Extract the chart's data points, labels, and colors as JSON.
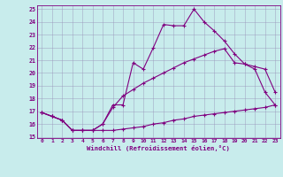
{
  "xlabel": "Windchill (Refroidissement éolien,°C)",
  "bg_color": "#c8ecec",
  "line_color": "#800080",
  "grid_color": "#9999bb",
  "xlim": [
    -0.5,
    23.5
  ],
  "ylim": [
    14.9,
    25.3
  ],
  "xticks": [
    0,
    1,
    2,
    3,
    4,
    5,
    6,
    7,
    8,
    9,
    10,
    11,
    12,
    13,
    14,
    15,
    16,
    17,
    18,
    19,
    20,
    21,
    22,
    23
  ],
  "yticks": [
    15,
    16,
    17,
    18,
    19,
    20,
    21,
    22,
    23,
    24,
    25
  ],
  "line1_x": [
    0,
    1,
    2,
    3,
    4,
    5,
    6,
    7,
    8,
    9,
    10,
    11,
    12,
    13,
    14,
    15,
    16,
    17,
    18,
    19,
    20,
    21,
    22,
    23
  ],
  "line1_y": [
    16.9,
    16.6,
    16.3,
    15.5,
    15.5,
    15.5,
    16.0,
    17.5,
    17.5,
    20.8,
    20.3,
    22.0,
    23.8,
    23.7,
    23.7,
    25.0,
    24.0,
    23.3,
    22.5,
    21.5,
    20.7,
    20.3,
    18.5,
    17.5
  ],
  "line2_x": [
    0,
    1,
    2,
    3,
    4,
    5,
    6,
    7,
    8,
    9,
    10,
    11,
    12,
    13,
    14,
    15,
    16,
    17,
    18,
    19,
    20,
    21,
    22,
    23
  ],
  "line2_y": [
    16.9,
    16.6,
    16.3,
    15.5,
    15.5,
    15.5,
    16.0,
    17.3,
    18.2,
    18.7,
    19.2,
    19.6,
    20.0,
    20.4,
    20.8,
    21.1,
    21.4,
    21.7,
    21.9,
    20.8,
    20.7,
    20.5,
    20.3,
    18.5
  ],
  "line3_x": [
    0,
    1,
    2,
    3,
    4,
    5,
    6,
    7,
    8,
    9,
    10,
    11,
    12,
    13,
    14,
    15,
    16,
    17,
    18,
    19,
    20,
    21,
    22,
    23
  ],
  "line3_y": [
    16.9,
    16.6,
    16.3,
    15.5,
    15.5,
    15.5,
    15.5,
    15.5,
    15.6,
    15.7,
    15.8,
    16.0,
    16.1,
    16.3,
    16.4,
    16.6,
    16.7,
    16.8,
    16.9,
    17.0,
    17.1,
    17.2,
    17.3,
    17.5
  ]
}
